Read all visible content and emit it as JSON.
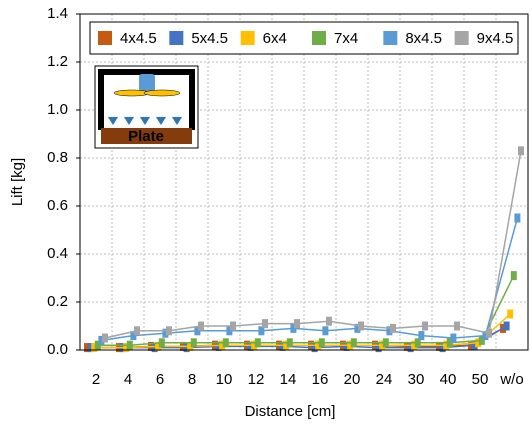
{
  "chart_data": {
    "type": "line",
    "x_label": "Distance [cm]",
    "y_label": "Lift [kg]",
    "inset_label": "Plate",
    "categories": [
      "2",
      "4",
      "6",
      "8",
      "10",
      "12",
      "14",
      "16",
      "20",
      "24",
      "30",
      "40",
      "50",
      "w/o"
    ],
    "series": [
      {
        "name": "4x4.5",
        "color": "#c55a11",
        "values": [
          0.01,
          0.01,
          0.015,
          0.015,
          0.02,
          0.02,
          0.02,
          0.02,
          0.02,
          0.02,
          0.015,
          0.015,
          0.02,
          0.09
        ]
      },
      {
        "name": "5x4.5",
        "color": "#4472c4",
        "values": [
          0.01,
          0.01,
          0.01,
          0.01,
          0.015,
          0.015,
          0.015,
          0.01,
          0.015,
          0.01,
          0.01,
          0.01,
          0.02,
          0.1
        ]
      },
      {
        "name": "6x4",
        "color": "#ffc000",
        "values": [
          0.01,
          0.01,
          0.015,
          0.015,
          0.02,
          0.02,
          0.02,
          0.02,
          0.02,
          0.02,
          0.02,
          0.02,
          0.03,
          0.15
        ]
      },
      {
        "name": "7x4",
        "color": "#70ad47",
        "values": [
          0.02,
          0.02,
          0.03,
          0.03,
          0.03,
          0.03,
          0.03,
          0.03,
          0.03,
          0.03,
          0.03,
          0.03,
          0.04,
          0.31
        ]
      },
      {
        "name": "8x4.5",
        "color": "#5b9bd5",
        "values": [
          0.04,
          0.06,
          0.07,
          0.08,
          0.08,
          0.08,
          0.09,
          0.08,
          0.09,
          0.08,
          0.06,
          0.05,
          0.06,
          0.55
        ]
      },
      {
        "name": "9x4.5",
        "color": "#a5a5a5",
        "values": [
          0.05,
          0.08,
          0.08,
          0.1,
          0.1,
          0.11,
          0.11,
          0.12,
          0.1,
          0.09,
          0.1,
          0.1,
          0.07,
          0.83
        ]
      }
    ],
    "ylim": [
      0,
      1.4
    ],
    "yticks": [
      {
        "value": 0,
        "label": "0.0"
      },
      0.2,
      0.4,
      0.6,
      0.8,
      {
        "value": 1,
        "label": "1.0"
      },
      1.2,
      1.4
    ],
    "grid": true
  }
}
